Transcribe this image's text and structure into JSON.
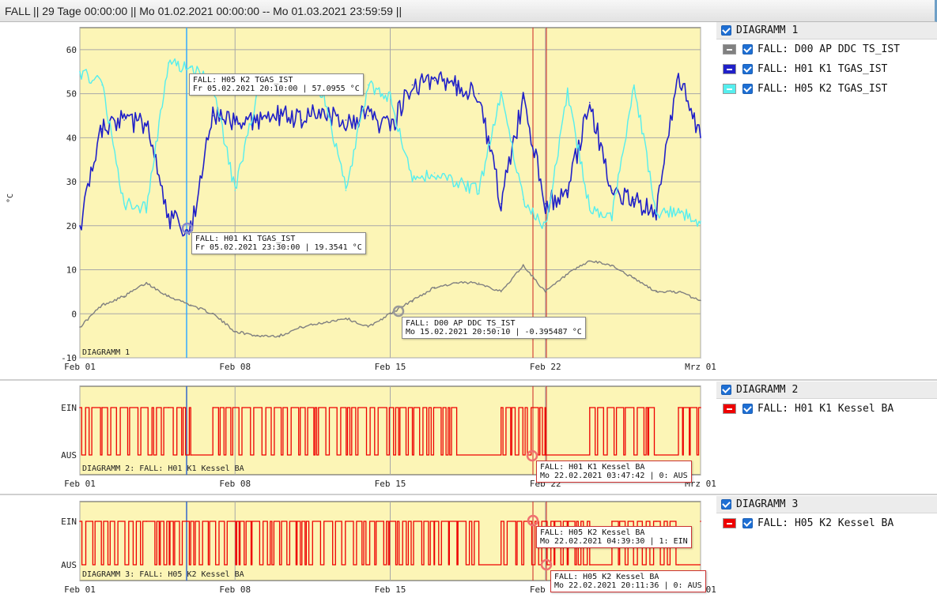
{
  "title": "FALL || 29 Tage 00:00:00 || Mo 01.02.2021 00:00:00 -- Mo 01.03.2021 23:59:59 ||",
  "colors": {
    "plot_bg": "#fcf5b6",
    "grid": "#a8a8a8",
    "gray": "#7a7a7a",
    "blue": "#2020c8",
    "cyan": "#55eeee",
    "red": "#ee0000"
  },
  "x_ticks": [
    "Feb 01",
    "Feb 08",
    "Feb 15",
    "Feb 22",
    "Mrz 01"
  ],
  "panels": [
    {
      "legend_title": "DIAGRAMM 1",
      "inner_label": "DIAGRAMM 1",
      "y_unit": "°C",
      "y_ticks": [
        "60",
        "50",
        "40",
        "30",
        "20",
        "10",
        "0",
        "-10"
      ],
      "series": [
        {
          "name": "FALL: D00 AP DDC TS_IST",
          "color": "#808080"
        },
        {
          "name": "FALL: H01 K1 TGAS_IST",
          "color": "#2020c8"
        },
        {
          "name": "FALL: H05 K2 TGAS_IST",
          "color": "#55eeee"
        }
      ],
      "tooltips": [
        {
          "l1": "FALL: H05 K2 TGAS_IST",
          "l2": "Fr 05.02.2021 20:10:00 | 57.0955 °C"
        },
        {
          "l1": "FALL: H01 K1 TGAS_IST",
          "l2": "Fr 05.02.2021 23:30:00 | 19.3541 °C"
        },
        {
          "l1": "FALL: D00 AP DDC TS_IST",
          "l2": "Mo 15.02.2021 20:50:10 | -0.395487 °C"
        }
      ]
    },
    {
      "legend_title": "DIAGRAMM 2",
      "inner_label": "DIAGRAMM 2: FALL: H01 K1 Kessel BA",
      "y_ticks": [
        "EIN",
        "AUS"
      ],
      "series": [
        {
          "name": "FALL: H01 K1 Kessel BA",
          "color": "#ee0000"
        }
      ],
      "tooltips": [
        {
          "l1": "FALL: H01 K1 Kessel BA",
          "l2": "Mo 22.02.2021 03:47:42 | 0: AUS"
        }
      ]
    },
    {
      "legend_title": "DIAGRAMM 3",
      "inner_label": "DIAGRAMM 3: FALL: H05 K2 Kessel BA",
      "y_ticks": [
        "EIN",
        "AUS"
      ],
      "series": [
        {
          "name": "FALL: H05 K2 Kessel BA",
          "color": "#ee0000"
        }
      ],
      "tooltips": [
        {
          "l1": "FALL: H05 K2 Kessel BA",
          "l2": "Mo 22.02.2021 04:39:30 | 1: EIN"
        },
        {
          "l1": "FALL: H05 K2 Kessel BA",
          "l2": "Mo 22.02.2021 20:11:36 | 0: AUS"
        }
      ]
    }
  ],
  "chart_data": [
    {
      "type": "line",
      "title": "DIAGRAMM 1",
      "ylabel": "°C",
      "x_range": [
        "2021-02-01",
        "2021-03-01"
      ],
      "ylim": [
        -10,
        65
      ],
      "grid": true,
      "series": [
        {
          "name": "FALL: D00 AP DDC TS_IST",
          "x": [
            "2021-02-01",
            "2021-02-02",
            "2021-02-03",
            "2021-02-04",
            "2021-02-05",
            "2021-02-06",
            "2021-02-07",
            "2021-02-08",
            "2021-02-09",
            "2021-02-10",
            "2021-02-11",
            "2021-02-12",
            "2021-02-13",
            "2021-02-14",
            "2021-02-15",
            "2021-02-16",
            "2021-02-17",
            "2021-02-18",
            "2021-02-19",
            "2021-02-20",
            "2021-02-21",
            "2021-02-22",
            "2021-02-23",
            "2021-02-24",
            "2021-02-25",
            "2021-02-26",
            "2021-02-27",
            "2021-02-28",
            "2021-03-01"
          ],
          "y": [
            -3,
            2,
            4,
            7,
            4,
            2,
            0,
            -4,
            -5,
            -5,
            -3,
            -2,
            -1,
            -3,
            0,
            3,
            6,
            7,
            7,
            5,
            11,
            5,
            9,
            12,
            11,
            8,
            5,
            5,
            3
          ]
        },
        {
          "name": "FALL: H01 K1 TGAS_IST",
          "x": [
            "2021-02-01",
            "2021-02-02",
            "2021-02-03",
            "2021-02-04",
            "2021-02-05",
            "2021-02-06",
            "2021-02-07",
            "2021-02-08",
            "2021-02-09",
            "2021-02-10",
            "2021-02-11",
            "2021-02-12",
            "2021-02-13",
            "2021-02-14",
            "2021-02-15",
            "2021-02-16",
            "2021-02-17",
            "2021-02-18",
            "2021-02-19",
            "2021-02-20",
            "2021-02-21",
            "2021-02-22",
            "2021-02-23",
            "2021-02-24",
            "2021-02-25",
            "2021-02-26",
            "2021-02-27",
            "2021-02-28",
            "2021-03-01"
          ],
          "y": [
            20,
            42,
            44,
            43,
            22,
            19,
            45,
            43,
            44,
            45,
            44,
            46,
            44,
            45,
            42,
            52,
            53,
            52,
            50,
            25,
            49,
            25,
            28,
            48,
            28,
            26,
            23,
            54,
            40
          ]
        },
        {
          "name": "FALL: H05 K2 TGAS_IST",
          "x": [
            "2021-02-01",
            "2021-02-02",
            "2021-02-03",
            "2021-02-04",
            "2021-02-05",
            "2021-02-06",
            "2021-02-07",
            "2021-02-08",
            "2021-02-09",
            "2021-02-10",
            "2021-02-11",
            "2021-02-12",
            "2021-02-13",
            "2021-02-14",
            "2021-02-15",
            "2021-02-16",
            "2021-02-17",
            "2021-02-18",
            "2021-02-19",
            "2021-02-20",
            "2021-02-21",
            "2021-02-22",
            "2021-02-23",
            "2021-02-24",
            "2021-02-25",
            "2021-02-26",
            "2021-02-27",
            "2021-02-28",
            "2021-03-01"
          ],
          "y": [
            55,
            52,
            25,
            24,
            57,
            56,
            52,
            28,
            50,
            51,
            52,
            50,
            28,
            52,
            49,
            30,
            32,
            30,
            28,
            50,
            26,
            20,
            50,
            24,
            22,
            52,
            23,
            23,
            21
          ]
        }
      ]
    },
    {
      "type": "line",
      "title": "DIAGRAMM 2: FALL: H01 K1 Kessel BA",
      "y_categories": [
        "AUS",
        "EIN"
      ],
      "x_range": [
        "2021-02-01",
        "2021-03-01"
      ],
      "series": [
        {
          "name": "FALL: H01 K1 Kessel BA",
          "x": [
            "2021-02-01",
            "2021-02-02",
            "2021-02-05",
            "2021-02-06",
            "2021-02-07",
            "2021-02-17",
            "2021-02-18",
            "2021-02-20",
            "2021-02-22",
            "2021-02-24",
            "2021-02-27",
            "2021-02-28",
            "2021-03-01"
          ],
          "y": [
            1,
            1,
            1,
            0,
            1,
            1,
            0,
            1,
            0,
            1,
            0,
            1,
            1
          ]
        }
      ]
    },
    {
      "type": "line",
      "title": "DIAGRAMM 3: FALL: H05 K2 Kessel BA",
      "y_categories": [
        "AUS",
        "EIN"
      ],
      "x_range": [
        "2021-02-01",
        "2021-03-01"
      ],
      "series": [
        {
          "name": "FALL: H05 K2 Kessel BA",
          "x": [
            "2021-02-01",
            "2021-02-04",
            "2021-02-06",
            "2021-02-17",
            "2021-02-19",
            "2021-02-20",
            "2021-02-22",
            "2021-02-24",
            "2021-02-25",
            "2021-02-27",
            "2021-02-28",
            "2021-03-01"
          ],
          "y": [
            1,
            1,
            1,
            1,
            0,
            1,
            1,
            0,
            1,
            1,
            0,
            1
          ]
        }
      ]
    }
  ]
}
